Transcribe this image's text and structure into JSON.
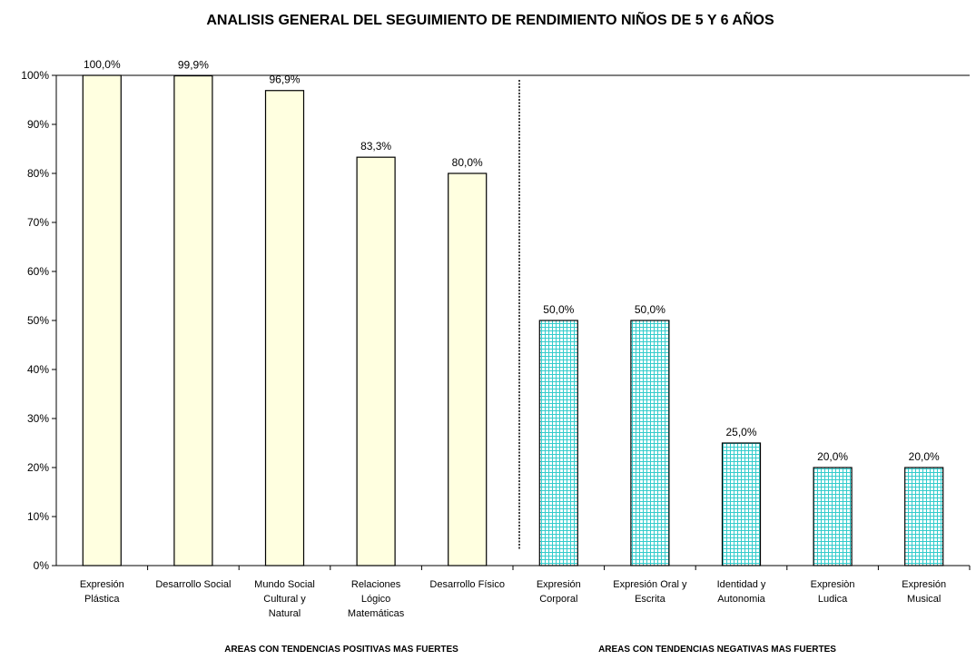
{
  "chart_data": {
    "type": "bar",
    "title": "ANALISIS GENERAL DEL SEGUIMIENTO DE RENDIMIENTO NIÑOS DE 5 Y 6 AÑOS",
    "categories": [
      "Expresión\nPlástica",
      "Desarrollo Social",
      "Mundo  Social\nCultural y\nNatural",
      "Relaciones\nLógico\nMatemáticas",
      "Desarrollo Físico",
      "Expresión\nCorporal",
      "Expresión Oral y\nEscrita",
      "Identidad y\nAutonomia",
      "Expresiòn\nLudica",
      "Expresión\nMusical"
    ],
    "values": [
      100,
      99.9,
      96.9,
      83.3,
      80,
      50,
      50,
      25,
      20,
      20
    ],
    "value_labels": [
      "100,0%",
      "99,9%",
      "96,9%",
      "83,3%",
      "80,0%",
      "50,0%",
      "50,0%",
      "25,0%",
      "20,0%",
      "20,0%"
    ],
    "colors": [
      "#ffffe0",
      "#ffffe0",
      "#ffffe0",
      "#ffffe0",
      "#ffffe0",
      "#33cccc",
      "#33cccc",
      "#33cccc",
      "#33cccc",
      "#33cccc"
    ],
    "hatched": [
      false,
      false,
      false,
      false,
      false,
      true,
      true,
      true,
      true,
      true
    ],
    "group_labels": [
      "AREAS CON TENDENCIAS POSITIVAS MAS FUERTES",
      "AREAS CON TENDENCIAS NEGATIVAS MAS FUERTES"
    ],
    "ylim": [
      0,
      100
    ],
    "yticks": [
      {
        "value": 0,
        "label": "0%"
      },
      {
        "value": 10,
        "label": "10%"
      },
      {
        "value": 20,
        "label": "20%"
      },
      {
        "value": 30,
        "label": "30%"
      },
      {
        "value": 40,
        "label": "40%"
      },
      {
        "value": 50,
        "label": "50%"
      },
      {
        "value": 60,
        "label": "60%"
      },
      {
        "value": 70,
        "label": "70%"
      },
      {
        "value": 80,
        "label": "80%"
      },
      {
        "value": 90,
        "label": "90%"
      },
      {
        "value": 100,
        "label": "100%"
      }
    ]
  }
}
